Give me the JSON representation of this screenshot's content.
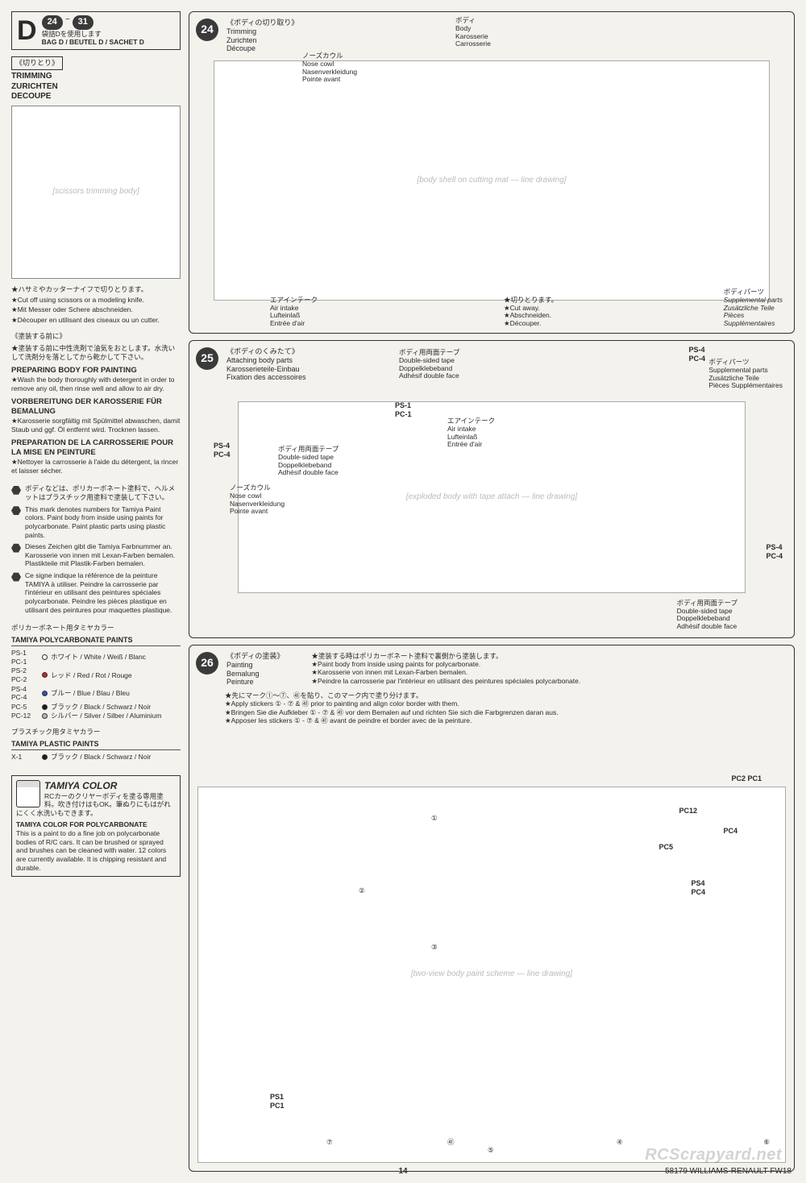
{
  "header": {
    "bag_letter": "D",
    "step_from": "24",
    "step_to": "31",
    "bag_note_jp": "袋詰Dを使用します",
    "bag_note_ml": "BAG D / BEUTEL D / SACHET D"
  },
  "left": {
    "trim_label_jp": "《切りとり》",
    "trim_title": "TRIMMING\nZURICHTEN\nDECOUPE",
    "trim_illus": "[scissors trimming body]",
    "trim_star_jp": "★ハサミやカッターナイフで切りとります。",
    "trim_star_en": "★Cut off using scissors or a modeling knife.",
    "trim_star_de": "★Mit Messer oder Schere abschneiden.",
    "trim_star_fr": "★Découper en utilisant des ciseaux ou un cutter.",
    "prep_jp_title": "《塗装する前に》",
    "prep_jp_text": "★塗装する前に中性洗剤で油気をおとします。水洗いして洗剤分を落としてから乾かして下さい。",
    "prep_en_title": "PREPARING BODY FOR PAINTING",
    "prep_en_text": "★Wash the body thoroughly with detergent in order to remove any oil, then rinse well and allow to air dry.",
    "prep_de_title": "VORBEREITUNG DER KAROSSERIE FÜR BEMALUNG",
    "prep_de_text": "★Karosserie sorgfältig mit Spülmittel abwaschen, damit Staub und ggf. Öl entfernt wird. Trocknen lassen.",
    "prep_fr_title": "PREPARATION DE LA CARROSSERIE POUR LA MISE EN PEINTURE",
    "prep_fr_text": "★Nettoyer la carrosserie à l'aide du détergent, la rincer et laisser sécher.",
    "hex_jp": "ボディなどは、ポリカーボネート塗料で、ヘルメットはプラスチック用塗料で塗装して下さい。",
    "hex_en": "This mark denotes numbers for Tamiya Paint colors. Paint body from inside using paints for polycarbonate. Paint plastic parts using plastic paints.",
    "hex_de": "Dieses Zeichen gibt die Tamiya Farbnummer an. Karosserie von innen mit Lexan-Farben bemalen. Plastikteile mit Plastik-Farben bemalen.",
    "hex_fr": "Ce signe indique la référence de la peinture TAMIYA à utiliser. Peindre la carrosserie par l'intérieur en utilisant des peintures spéciales polycarbonate. Peindre les pièces plastique en utilisant des peintures pour maquettes plastique.",
    "poly_title_jp": "ポリカーボネート用タミヤカラー",
    "poly_title": "TAMIYA POLYCARBONATE PAINTS",
    "plastic_title_jp": "プラスチック用タミヤカラー",
    "plastic_title": "TAMIYA PLASTIC PAINTS",
    "paints_poly": [
      {
        "code": "PS-1\nPC-1",
        "dot": "#ffffff",
        "name": "ホワイト / White / Weiß / Blanc"
      },
      {
        "code": "PS-2\nPC-2",
        "dot": "#cc2222",
        "name": "レッド / Red / Rot / Rouge"
      },
      {
        "code": "PS-4\nPC-4",
        "dot": "#2a4fbf",
        "name": "ブルー / Blue / Blau / Bleu"
      },
      {
        "code": "PC-5",
        "dot": "#1a1a1a",
        "name": "ブラック / Black / Schwarz / Noir"
      },
      {
        "code": "PC-12",
        "dot": "#b8b8b8",
        "name": "シルバー / Silver / Silber / Aluminium"
      }
    ],
    "paints_plastic": [
      {
        "code": "X-1",
        "dot": "#1a1a1a",
        "name": "ブラック / Black / Schwarz / Noir"
      }
    ],
    "colorbox": {
      "brand": "TAMIYA COLOR",
      "jp": "RCカーのクリヤーボディを塗る専用塗料。吹き付けはもOK。筆ぬりにもはがれにくく水洗いもできます。",
      "title": "TAMIYA COLOR FOR POLYCARBONATE",
      "text": "This is a paint to do a fine job on polycarbonate bodies of R/C cars. It can be brushed or sprayed and brushes can be cleaned with water. 12 colors are currently available. It is chipping resistant and durable."
    }
  },
  "panel24": {
    "num": "24",
    "title_jp": "《ボディの切り取り》",
    "title_en": "Trimming",
    "title_de": "Zurichten",
    "title_fr": "Découpe",
    "illus": "[body shell on cutting mat — line drawing]",
    "c_nose_jp": "ノーズカウル",
    "c_nose": "Nose cowl\nNasenverkleidung\nPointe avant",
    "c_body_jp": "ボディ",
    "c_body": "Body\nKarosserie\nCarrosserie",
    "c_air_jp": "エアインテーク",
    "c_air": "Air intake\nLufteinlaß\nEntrée d'air",
    "c_cut_jp": "★切りとります。",
    "c_cut": "★Cut away.\n★Abschneiden.\n★Découper.",
    "c_supp_jp": "ボディパーツ",
    "c_supp": "Supplemental parts\nZusätzliche Teile\nPièces\nSupplémentaires"
  },
  "panel25": {
    "num": "25",
    "title_jp": "《ボディのくみたて》",
    "title_en": "Attaching body parts",
    "title_de": "Karosserieteile-Einbau",
    "title_fr": "Fixation des accessoires",
    "illus": "[exploded body with tape attach — line drawing]",
    "lbl_ps4a": "PS-4\nPC-4",
    "lbl_ps1": "PS-1\nPC-1",
    "lbl_ps4b": "PS-4\nPC-4",
    "lbl_ps4c": "PS-4\nPC-4",
    "c_tape_jp": "ボディ用両面テープ",
    "c_tape": "Double-sided tape\nDoppelklebeband\nAdhésif double face",
    "c_nose_jp": "ノーズカウル",
    "c_nose": "Nose cowl\nNasenverkleidung\nPointe avant",
    "c_air_jp": "エアインテーク",
    "c_air": "Air intake\nLufteinlaß\nEntrée d'air",
    "c_supp_jp": "ボディパーツ",
    "c_supp": "Supplemental parts\nZusätzliche Teile\nPièces Supplémentaires"
  },
  "panel26": {
    "num": "26",
    "title_jp": "《ボディの塗装》",
    "title_en": "Painting",
    "title_de": "Bemalung",
    "title_fr": "Peinture",
    "illus": "[two-view body paint scheme — line drawing]",
    "note_jp": "★塗装する時はポリカーボネート塗料で裏側から塗装します。",
    "note_en": "★Paint body from inside using paints for polycarbonate.",
    "note_de": "★Karosserie von innen mit Lexan-Farben bemalen.",
    "note_fr": "★Peindre la carrosserie par l'intérieur en utilisant des peintures spéciales polycarbonate.",
    "stk_jp": "★先にマーク①〜⑦、㊶を貼り、このマーク内で塗り分けます。",
    "stk_en": "★Apply stickers ① - ⑦ & ㊶ prior to painting and align color border with them.",
    "stk_de": "★Bringen Sie die Aufkleber ① - ⑦ & ㊶ vor dem Bemalen auf und richten Sie sich die Farbgrenzen daran aus.",
    "stk_fr": "★Apposer les stickers ① - ⑦ & ㊶ avant de peindre et border avec de la peinture.",
    "lbl_pc2": "PC2  PC1",
    "lbl_pc12": "PC12",
    "lbl_pc4": "PC4",
    "lbl_pc5": "PC5",
    "lbl_ps4": "PS4\nPC4",
    "lbl_ps1": "PS1\nPC1",
    "m1": "①",
    "m2": "②",
    "m3": "③",
    "m4": "④",
    "m5": "⑤",
    "m6": "⑥",
    "m7": "⑦",
    "m41": "㊶"
  },
  "footer": {
    "page": "14",
    "id": "58179 WILLIAMS-RENAULT FW18",
    "watermark": "RCScrapyard.net"
  }
}
